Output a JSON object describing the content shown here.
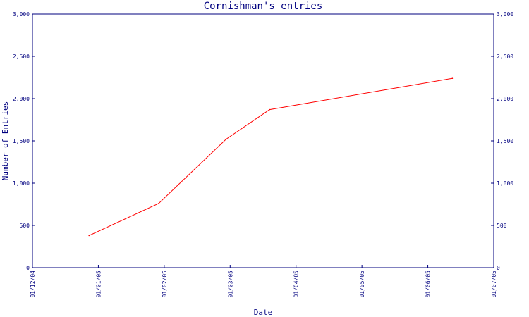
{
  "chart_data": {
    "type": "line",
    "title": "Cornishman's entries",
    "xlabel": "Date",
    "ylabel": "Number of Entries",
    "x_ticks": [
      "01/12/04",
      "01/01/05",
      "01/02/05",
      "01/03/05",
      "01/04/05",
      "01/05/05",
      "01/06/05",
      "01/07/05"
    ],
    "y_ticks": [
      "0",
      "500",
      "1,000",
      "1,500",
      "2,000",
      "2,500",
      "3,000"
    ],
    "y_tick_values": [
      0,
      500,
      1000,
      1500,
      2000,
      2500,
      3000
    ],
    "ylim": [
      0,
      3000
    ],
    "xlim": [
      "2004-12-01",
      "2005-07-01"
    ],
    "grid": false,
    "legend": "none",
    "series": [
      {
        "color": "#ff0000",
        "points": [
          {
            "x": "2004-12-27",
            "y": 380
          },
          {
            "x": "2005-01-28",
            "y": 760
          },
          {
            "x": "2005-02-28",
            "y": 1520
          },
          {
            "x": "2005-03-20",
            "y": 1870
          },
          {
            "x": "2005-06-12",
            "y": 2240
          }
        ]
      }
    ],
    "colors": {
      "axis": "#00007f",
      "text": "#00007f",
      "line": "#ff0000",
      "background": "#ffffff"
    }
  }
}
